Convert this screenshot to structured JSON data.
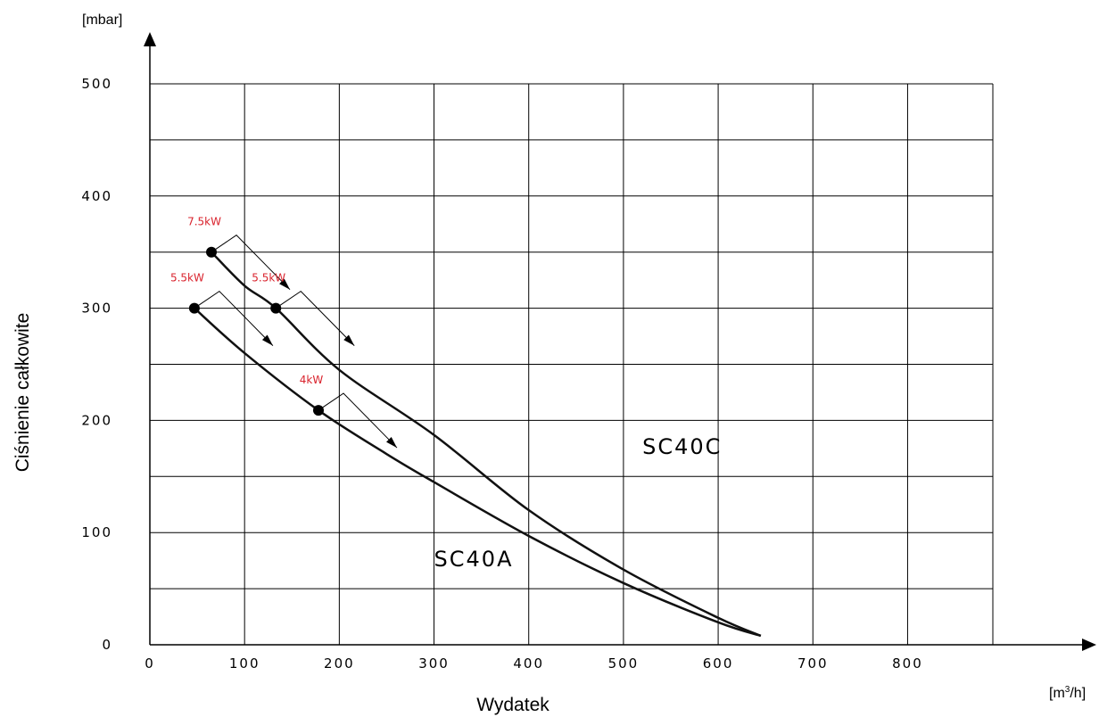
{
  "chart_data": {
    "type": "line",
    "title": "",
    "xlabel": "Wydatek",
    "ylabel": "Ciśnienie całkowite",
    "x_unit": {
      "base": "[m",
      "sup": "3",
      "rest": "/h]"
    },
    "y_unit": "[mbar]",
    "xlim": [
      0,
      890
    ],
    "ylim": [
      0,
      500
    ],
    "x_ticks": [
      0,
      100,
      200,
      300,
      400,
      500,
      600,
      700,
      800
    ],
    "y_ticks": [
      0,
      100,
      200,
      300,
      400,
      500
    ],
    "grid": true,
    "series": [
      {
        "name": "SC40C",
        "label_pos": [
          520,
          170
        ],
        "points": [
          [
            65,
            350
          ],
          [
            100,
            320
          ],
          [
            133,
            300
          ],
          [
            200,
            245
          ],
          [
            300,
            187
          ],
          [
            400,
            120
          ],
          [
            500,
            67
          ],
          [
            600,
            24
          ],
          [
            645,
            8
          ]
        ],
        "markers": [
          {
            "x": 65,
            "y": 350,
            "label": "7.5kW"
          },
          {
            "x": 133,
            "y": 300,
            "label": "5.5kW"
          }
        ]
      },
      {
        "name": "SC40A",
        "label_pos": [
          300,
          70
        ],
        "points": [
          [
            47,
            300
          ],
          [
            100,
            260
          ],
          [
            178,
            209
          ],
          [
            250,
            170
          ],
          [
            300,
            145
          ],
          [
            400,
            97
          ],
          [
            500,
            55
          ],
          [
            600,
            20
          ],
          [
            645,
            8
          ]
        ],
        "markers": [
          {
            "x": 47,
            "y": 300,
            "label": "5.5kW"
          },
          {
            "x": 178,
            "y": 209,
            "label": "4kW"
          }
        ]
      }
    ],
    "colors": {
      "curve": "#111111",
      "grid": "#000000",
      "power_label": "#d9232d"
    }
  }
}
